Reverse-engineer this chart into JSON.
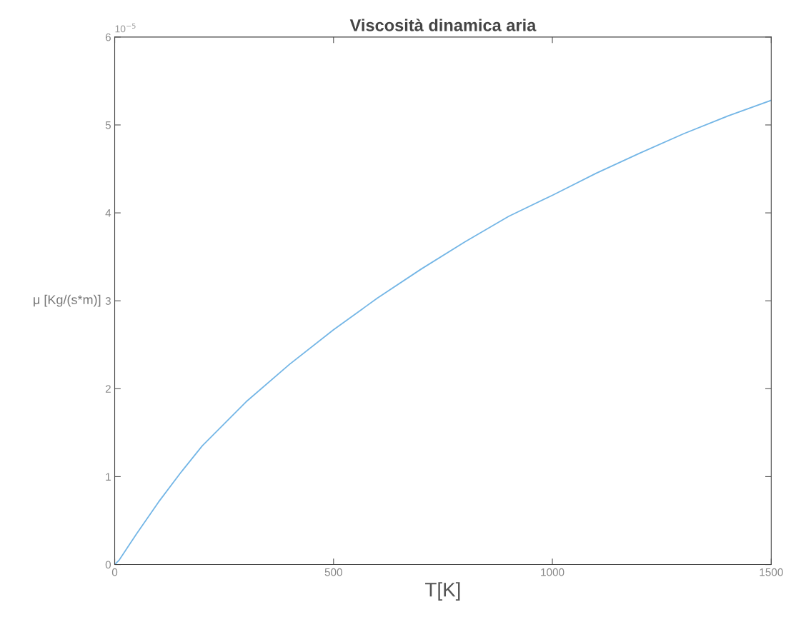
{
  "chart_data": {
    "type": "line",
    "title": "Viscosità dinamica aria",
    "xlabel": "T[K]",
    "ylabel": "μ [Kg/(s*m)]",
    "annotations": [
      "10$^{−5}$"
    ],
    "x": [
      0,
      10,
      50,
      100,
      150,
      200,
      300,
      400,
      500,
      600,
      700,
      800,
      900,
      1000,
      1100,
      1200,
      1300,
      1400,
      1500
    ],
    "series": [
      {
        "color": "#74b6e6",
        "values": [
          0,
          0.05,
          0.35,
          0.71,
          1.04,
          1.35,
          1.85,
          2.28,
          2.67,
          3.03,
          3.36,
          3.67,
          3.96,
          4.2,
          4.45,
          4.68,
          4.9,
          5.1,
          5.28
        ]
      }
    ],
    "xlim": [
      0,
      1500
    ],
    "xticks": [
      0,
      500,
      1000,
      1500
    ],
    "ylim": [
      0,
      6
    ],
    "yticks": [
      0,
      1,
      2,
      3,
      4,
      5,
      6
    ],
    "grid": false,
    "legend": false,
    "marker": "none",
    "line_style": "solid"
  }
}
